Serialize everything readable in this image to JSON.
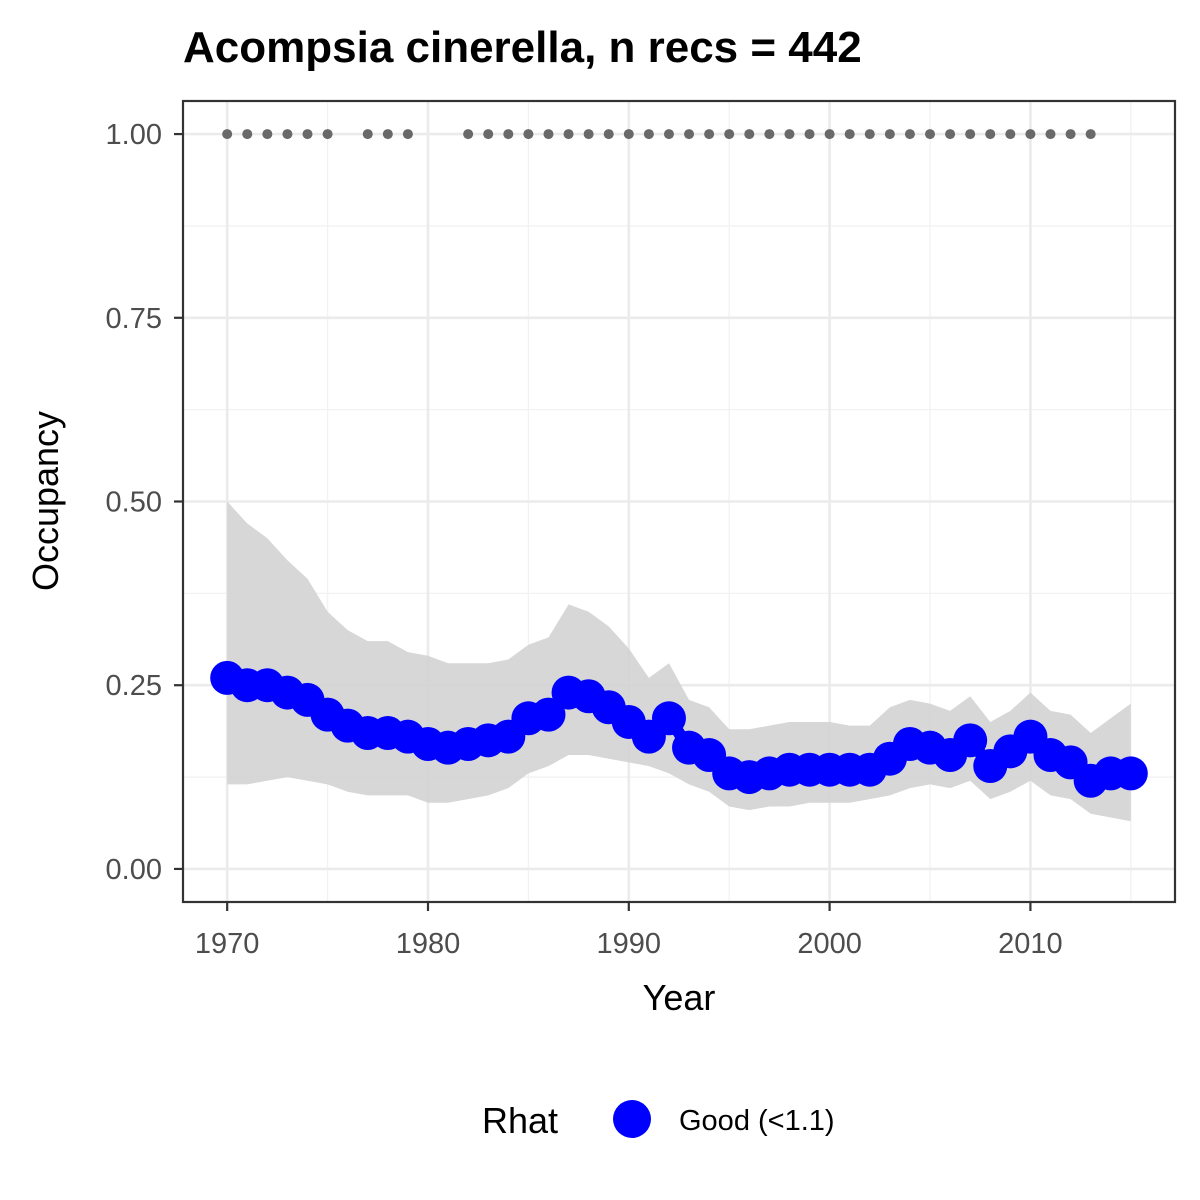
{
  "chart_data": {
    "type": "line",
    "title": "Acompsia cinerella, n recs = 442",
    "xlabel": "Year",
    "ylabel": "Occupancy",
    "xlim": [
      1967.8,
      2017.2
    ],
    "ylim": [
      -0.045,
      1.045
    ],
    "x_ticks": [
      1970,
      1980,
      1990,
      2000,
      2010
    ],
    "x_tick_labels": [
      "1970",
      "1980",
      "1990",
      "2000",
      "2010"
    ],
    "y_ticks": [
      0,
      0.25,
      0.5,
      0.75,
      1.0
    ],
    "y_tick_labels": [
      "0.00",
      "0.25",
      "0.50",
      "0.75",
      "1.00"
    ],
    "grid": true,
    "legend": {
      "position": "bottom",
      "title": "Rhat",
      "entries": [
        {
          "label": "Good (<1.1)",
          "color": "#0000ff"
        }
      ]
    },
    "colors": {
      "series": "#0000ff",
      "ribbon": "#d3d3d3",
      "record_dots": "#696969"
    },
    "series": [
      {
        "name": "Good (<1.1)",
        "x": [
          1970,
          1971,
          1972,
          1973,
          1974,
          1975,
          1976,
          1977,
          1978,
          1979,
          1980,
          1981,
          1982,
          1983,
          1984,
          1985,
          1986,
          1987,
          1988,
          1989,
          1990,
          1991,
          1992,
          1993,
          1994,
          1995,
          1996,
          1997,
          1998,
          1999,
          2000,
          2001,
          2002,
          2003,
          2004,
          2005,
          2006,
          2007,
          2008,
          2009,
          2010,
          2011,
          2012,
          2013,
          2014,
          2015
        ],
        "y": [
          0.26,
          0.25,
          0.25,
          0.24,
          0.23,
          0.21,
          0.195,
          0.185,
          0.185,
          0.18,
          0.17,
          0.165,
          0.17,
          0.175,
          0.18,
          0.205,
          0.21,
          0.24,
          0.235,
          0.22,
          0.2,
          0.18,
          0.205,
          0.165,
          0.155,
          0.13,
          0.125,
          0.13,
          0.135,
          0.135,
          0.135,
          0.135,
          0.135,
          0.15,
          0.17,
          0.165,
          0.155,
          0.175,
          0.14,
          0.16,
          0.18,
          0.155,
          0.145,
          0.12,
          0.13,
          0.13
        ],
        "lower": [
          0.115,
          0.115,
          0.12,
          0.125,
          0.12,
          0.115,
          0.105,
          0.1,
          0.1,
          0.1,
          0.09,
          0.09,
          0.095,
          0.1,
          0.11,
          0.13,
          0.14,
          0.155,
          0.155,
          0.15,
          0.145,
          0.14,
          0.13,
          0.115,
          0.105,
          0.085,
          0.08,
          0.085,
          0.085,
          0.09,
          0.09,
          0.09,
          0.095,
          0.1,
          0.11,
          0.115,
          0.11,
          0.12,
          0.095,
          0.105,
          0.12,
          0.1,
          0.095,
          0.075,
          0.07,
          0.065
        ],
        "upper": [
          0.5,
          0.47,
          0.45,
          0.42,
          0.395,
          0.35,
          0.325,
          0.31,
          0.31,
          0.295,
          0.29,
          0.28,
          0.28,
          0.28,
          0.285,
          0.305,
          0.315,
          0.36,
          0.35,
          0.33,
          0.3,
          0.26,
          0.28,
          0.23,
          0.22,
          0.19,
          0.19,
          0.195,
          0.2,
          0.2,
          0.2,
          0.195,
          0.195,
          0.22,
          0.23,
          0.225,
          0.215,
          0.235,
          0.2,
          0.215,
          0.24,
          0.215,
          0.21,
          0.185,
          0.205,
          0.225
        ]
      }
    ],
    "records": {
      "y": 1.0,
      "years": [
        1970,
        1971,
        1972,
        1973,
        1974,
        1975,
        1977,
        1978,
        1979,
        1982,
        1983,
        1984,
        1985,
        1986,
        1987,
        1988,
        1989,
        1990,
        1991,
        1992,
        1993,
        1994,
        1995,
        1996,
        1997,
        1998,
        1999,
        2000,
        2001,
        2002,
        2003,
        2004,
        2005,
        2006,
        2007,
        2008,
        2009,
        2010,
        2011,
        2012,
        2013
      ]
    }
  }
}
